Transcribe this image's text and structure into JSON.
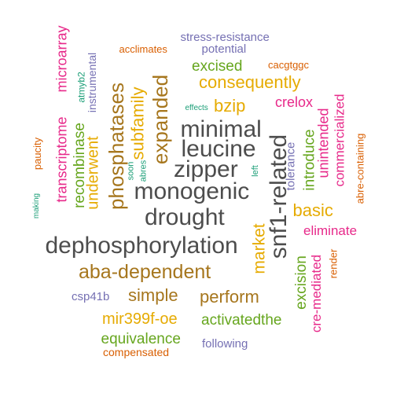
{
  "colors": {
    "dark_gray": "#4d4d4d",
    "brown": "#a6761d",
    "green": "#66a61e",
    "magenta": "#e7298a",
    "purple": "#7570b3",
    "orange": "#d95f02",
    "teal": "#1b9e77",
    "gold": "#e6ab02"
  },
  "words": [
    {
      "text": "dephosphorylation",
      "color": "#4d4d4d"
    },
    {
      "text": "drought",
      "color": "#4d4d4d"
    },
    {
      "text": "monogenic",
      "color": "#4d4d4d"
    },
    {
      "text": "zipper",
      "color": "#4d4d4d"
    },
    {
      "text": "leucine",
      "color": "#4d4d4d"
    },
    {
      "text": "minimal",
      "color": "#4d4d4d"
    },
    {
      "text": "snf1-related",
      "color": "#4d4d4d"
    },
    {
      "text": "aba-dependent",
      "color": "#a6761d"
    },
    {
      "text": "phosphatases",
      "color": "#a6761d"
    },
    {
      "text": "expanded",
      "color": "#a6761d"
    },
    {
      "text": "subfamily",
      "color": "#e6ab02"
    },
    {
      "text": "consequently",
      "color": "#e6ab02"
    },
    {
      "text": "bzip",
      "color": "#e6ab02"
    },
    {
      "text": "basic",
      "color": "#e6ab02"
    },
    {
      "text": "simple",
      "color": "#a6761d"
    },
    {
      "text": "perform",
      "color": "#a6761d"
    },
    {
      "text": "market",
      "color": "#e6ab02"
    },
    {
      "text": "mir399f-oe",
      "color": "#e6ab02"
    },
    {
      "text": "underwent",
      "color": "#e6ab02"
    },
    {
      "text": "activatedthe",
      "color": "#66a61e"
    },
    {
      "text": "equivalence",
      "color": "#66a61e"
    },
    {
      "text": "excised",
      "color": "#66a61e"
    },
    {
      "text": "recombinase",
      "color": "#66a61e"
    },
    {
      "text": "excision",
      "color": "#66a61e"
    },
    {
      "text": "introduce",
      "color": "#66a61e"
    },
    {
      "text": "transcriptome",
      "color": "#e7298a"
    },
    {
      "text": "microarray",
      "color": "#e7298a"
    },
    {
      "text": "crelox",
      "color": "#e7298a"
    },
    {
      "text": "unintended",
      "color": "#e7298a"
    },
    {
      "text": "commercialized",
      "color": "#e7298a"
    },
    {
      "text": "eliminate",
      "color": "#e7298a"
    },
    {
      "text": "cre-mediated",
      "color": "#e7298a"
    },
    {
      "text": "stress-resistance",
      "color": "#7570b3"
    },
    {
      "text": "potential",
      "color": "#7570b3"
    },
    {
      "text": "instrumental",
      "color": "#7570b3"
    },
    {
      "text": "csp41b",
      "color": "#7570b3"
    },
    {
      "text": "following",
      "color": "#7570b3"
    },
    {
      "text": "tolerance",
      "color": "#7570b3"
    },
    {
      "text": "acclimates",
      "color": "#d95f02"
    },
    {
      "text": "cacgtggc",
      "color": "#d95f02"
    },
    {
      "text": "compensated",
      "color": "#d95f02"
    },
    {
      "text": "paucity",
      "color": "#d95f02"
    },
    {
      "text": "abre-containing",
      "color": "#d95f02"
    },
    {
      "text": "render",
      "color": "#d95f02"
    },
    {
      "text": "atmyb2",
      "color": "#1b9e77"
    },
    {
      "text": "effects",
      "color": "#1b9e77"
    },
    {
      "text": "soon",
      "color": "#1b9e77"
    },
    {
      "text": "abres",
      "color": "#1b9e77"
    },
    {
      "text": "making",
      "color": "#1b9e77"
    },
    {
      "text": "left",
      "color": "#1b9e77"
    }
  ]
}
